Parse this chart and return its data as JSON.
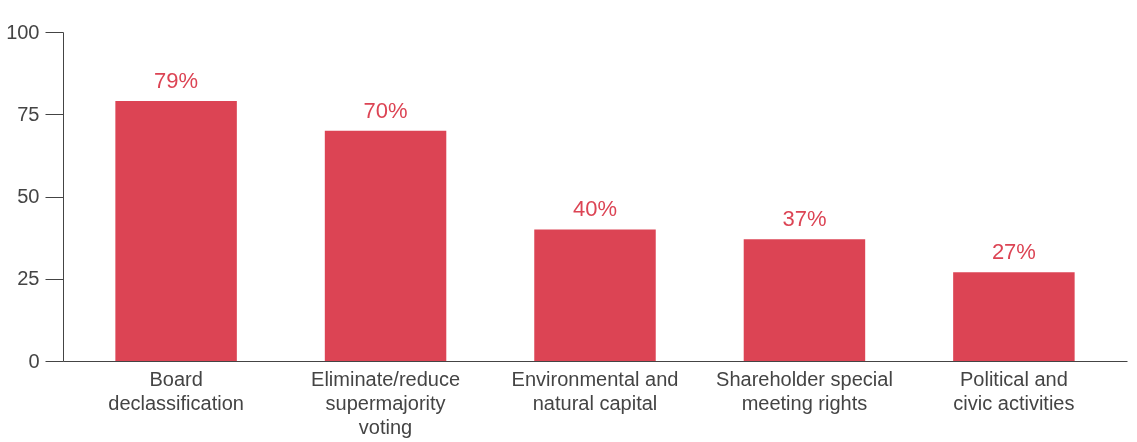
{
  "chart_data": {
    "type": "bar",
    "categories": [
      "Board declassification",
      "Eliminate/reduce supermajority voting",
      "Environmental and natural capital",
      "Shareholder special meeting rights",
      "Political and civic activities"
    ],
    "values": [
      79,
      70,
      40,
      37,
      27
    ],
    "value_labels": [
      "79%",
      "70%",
      "40%",
      "37%",
      "27%"
    ],
    "color": "#dc4454",
    "ylim": [
      0,
      100
    ],
    "yticks": [
      0,
      25,
      50,
      75,
      100
    ],
    "grid": false
  }
}
